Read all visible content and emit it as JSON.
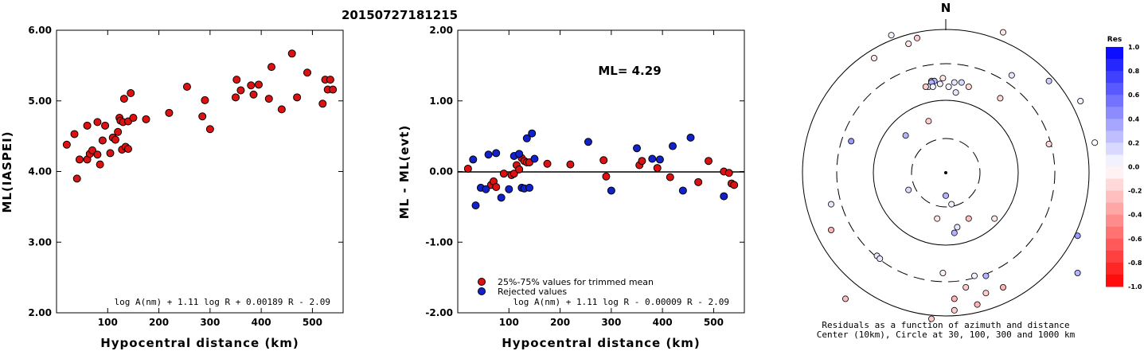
{
  "title": "20150727181215",
  "chart_data": [
    {
      "type": "scatter",
      "name": "left",
      "ylabel": "ML(IASPEI)",
      "xlabel": "Hypocentral distance (km)",
      "xlim": [
        0,
        560
      ],
      "ylim": [
        2.0,
        6.0
      ],
      "xticks": [
        "100",
        "200",
        "300",
        "400",
        "500"
      ],
      "yticks": [
        "2.00",
        "3.00",
        "4.00",
        "5.00",
        "6.00"
      ],
      "formula": "log A(nm) + 1.11 log R + 0.00189 R - 2.09",
      "points": [
        [
          20,
          4.38
        ],
        [
          35,
          4.53
        ],
        [
          40,
          3.9
        ],
        [
          45,
          4.17
        ],
        [
          60,
          4.17
        ],
        [
          60,
          4.65
        ],
        [
          65,
          4.25
        ],
        [
          70,
          4.3
        ],
        [
          80,
          4.24
        ],
        [
          80,
          4.7
        ],
        [
          85,
          4.1
        ],
        [
          90,
          4.44
        ],
        [
          95,
          4.65
        ],
        [
          105,
          4.26
        ],
        [
          110,
          4.48
        ],
        [
          115,
          4.45
        ],
        [
          120,
          4.56
        ],
        [
          123,
          4.76
        ],
        [
          125,
          4.72
        ],
        [
          128,
          4.31
        ],
        [
          130,
          4.7
        ],
        [
          132,
          5.03
        ],
        [
          135,
          4.35
        ],
        [
          140,
          4.71
        ],
        [
          140,
          4.32
        ],
        [
          145,
          5.11
        ],
        [
          150,
          4.76
        ],
        [
          175,
          4.74
        ],
        [
          220,
          4.83
        ],
        [
          255,
          5.2
        ],
        [
          285,
          4.78
        ],
        [
          290,
          5.01
        ],
        [
          300,
          4.6
        ],
        [
          350,
          5.05
        ],
        [
          352,
          5.3
        ],
        [
          360,
          5.15
        ],
        [
          380,
          5.22
        ],
        [
          385,
          5.09
        ],
        [
          395,
          5.23
        ],
        [
          415,
          5.03
        ],
        [
          420,
          5.48
        ],
        [
          440,
          4.88
        ],
        [
          460,
          5.67
        ],
        [
          470,
          5.05
        ],
        [
          490,
          5.4
        ],
        [
          520,
          4.96
        ],
        [
          525,
          5.3
        ],
        [
          530,
          5.16
        ],
        [
          535,
          5.3
        ],
        [
          540,
          5.16
        ]
      ]
    },
    {
      "type": "scatter",
      "name": "middle",
      "ylabel": "ML - ML(evt)",
      "xlabel": "Hypocentral distance (km)",
      "xlim": [
        0,
        560
      ],
      "ylim": [
        -2.0,
        2.0
      ],
      "xticks": [
        "100",
        "200",
        "300",
        "400",
        "500"
      ],
      "yticks": [
        "-2.00",
        "-1.00",
        "0.00",
        "1.00",
        "2.00"
      ],
      "ml_label": "ML= 4.29",
      "legend": [
        "25%-75% values for trimmed mean",
        "Rejected values"
      ],
      "formula": "log A(nm) + 1.11 log R - 0.00009 R - 2.09",
      "series": [
        {
          "name": "25%-75% values for trimmed mean",
          "color": "#dd1111",
          "points": [
            [
              20,
              0.04
            ],
            [
              65,
              -0.19
            ],
            [
              70,
              -0.14
            ],
            [
              75,
              -0.22
            ],
            [
              90,
              -0.03
            ],
            [
              105,
              -0.05
            ],
            [
              110,
              -0.03
            ],
            [
              115,
              0.09
            ],
            [
              120,
              0.03
            ],
            [
              125,
              0.19
            ],
            [
              130,
              0.15
            ],
            [
              135,
              0.13
            ],
            [
              140,
              0.13
            ],
            [
              175,
              0.11
            ],
            [
              220,
              0.1
            ],
            [
              285,
              0.16
            ],
            [
              290,
              -0.07
            ],
            [
              355,
              0.09
            ],
            [
              360,
              0.15
            ],
            [
              390,
              0.05
            ],
            [
              415,
              -0.08
            ],
            [
              470,
              -0.15
            ],
            [
              490,
              0.15
            ],
            [
              520,
              0.0
            ],
            [
              530,
              -0.02
            ],
            [
              535,
              -0.17
            ],
            [
              540,
              -0.19
            ]
          ]
        },
        {
          "name": "Rejected values",
          "color": "#1122cc",
          "points": [
            [
              30,
              0.17
            ],
            [
              35,
              -0.48
            ],
            [
              45,
              -0.23
            ],
            [
              55,
              -0.25
            ],
            [
              60,
              0.24
            ],
            [
              75,
              0.26
            ],
            [
              85,
              -0.37
            ],
            [
              100,
              -0.25
            ],
            [
              110,
              0.22
            ],
            [
              120,
              0.25
            ],
            [
              125,
              -0.23
            ],
            [
              130,
              -0.24
            ],
            [
              135,
              0.47
            ],
            [
              140,
              -0.23
            ],
            [
              145,
              0.54
            ],
            [
              150,
              0.18
            ],
            [
              255,
              0.42
            ],
            [
              300,
              -0.27
            ],
            [
              350,
              0.33
            ],
            [
              380,
              0.18
            ],
            [
              395,
              0.17
            ],
            [
              420,
              0.36
            ],
            [
              440,
              -0.27
            ],
            [
              455,
              0.48
            ],
            [
              520,
              -0.35
            ]
          ]
        }
      ]
    },
    {
      "type": "scatter",
      "name": "polar",
      "north_label": "N",
      "caption": [
        "Residuals as a function of azimuth and distance",
        "Center (10km), Circle at 30, 100, 300 and 1000 km"
      ],
      "colorbar_title": "Res",
      "colorbar_ticks": [
        "1.0",
        "0.8",
        "0.6",
        "0.4",
        "0.2",
        "0.0",
        "-0.2",
        "-0.4",
        "-0.6",
        "-0.8",
        "-1.0"
      ],
      "points_residual_east_north": [
        [
          0.15,
          6.0,
          1.5
        ],
        [
          0.0,
          5.2,
          1.05
        ],
        [
          0.0,
          5.8,
          1.3
        ],
        [
          0.05,
          4.7,
          2.5
        ],
        [
          -0.2,
          -1.0,
          4.7
        ],
        [
          -0.1,
          -1.3,
          4.5
        ],
        [
          0.05,
          -1.9,
          4.8
        ],
        [
          -0.1,
          -2.5,
          4.0
        ],
        [
          -0.1,
          2.0,
          4.9
        ],
        [
          0.1,
          2.3,
          3.4
        ],
        [
          0.15,
          -1.3,
          -0.6
        ],
        [
          -0.1,
          -0.3,
          -1.6
        ],
        [
          0.1,
          0.4,
          -1.9
        ],
        [
          -0.25,
          0.8,
          -1.6
        ],
        [
          -0.1,
          1.7,
          -1.6
        ],
        [
          -0.05,
          -0.1,
          -3.5
        ],
        [
          -0.2,
          0.7,
          -4.0
        ],
        [
          0.3,
          1.4,
          -3.6
        ],
        [
          0.1,
          -4.0,
          -1.1
        ],
        [
          -0.15,
          3.6,
          1.0
        ],
        [
          0.2,
          3.6,
          3.2
        ],
        [
          0.3,
          -1.4,
          1.3
        ],
        [
          0.05,
          0.2,
          -1.1
        ],
        [
          -0.3,
          -4.0,
          -2.0
        ],
        [
          0.1,
          -2.4,
          -2.9
        ],
        [
          0.1,
          -2.3,
          -3.0
        ],
        [
          -0.3,
          0.3,
          -4.4
        ],
        [
          -0.2,
          0.3,
          -4.8
        ],
        [
          -0.2,
          1.4,
          -4.2
        ],
        [
          0.05,
          1.0,
          -3.6
        ],
        [
          -0.3,
          2.0,
          -4.0
        ],
        [
          -0.3,
          1.1,
          -4.6
        ],
        [
          0.3,
          0.3,
          -2.1
        ],
        [
          0.3,
          0.0,
          -0.8
        ],
        [
          -0.1,
          -0.1,
          3.3
        ],
        [
          -0.15,
          1.9,
          2.6
        ],
        [
          -0.2,
          -0.6,
          1.8
        ],
        [
          0.2,
          -0.5,
          3.2
        ],
        [
          0.3,
          -0.4,
          3.2
        ],
        [
          0.3,
          -0.5,
          3.15
        ],
        [
          0.1,
          -0.6,
          3.0
        ],
        [
          0.05,
          0.1,
          3.0
        ],
        [
          0.1,
          0.3,
          3.15
        ],
        [
          0.15,
          0.55,
          3.15
        ],
        [
          0.05,
          -0.2,
          3.1
        ],
        [
          -0.2,
          -0.7,
          3.0
        ],
        [
          0.05,
          -0.45,
          3.0
        ],
        [
          0.1,
          0.35,
          2.8
        ],
        [
          -0.15,
          0.8,
          3.0
        ],
        [
          0.4,
          -3.3,
          1.1
        ],
        [
          0.4,
          4.6,
          -2.2
        ],
        [
          0.3,
          4.6,
          -3.5
        ],
        [
          -0.25,
          -3.5,
          -4.4
        ],
        [
          -0.2,
          -0.5,
          -5.1
        ]
      ]
    }
  ]
}
